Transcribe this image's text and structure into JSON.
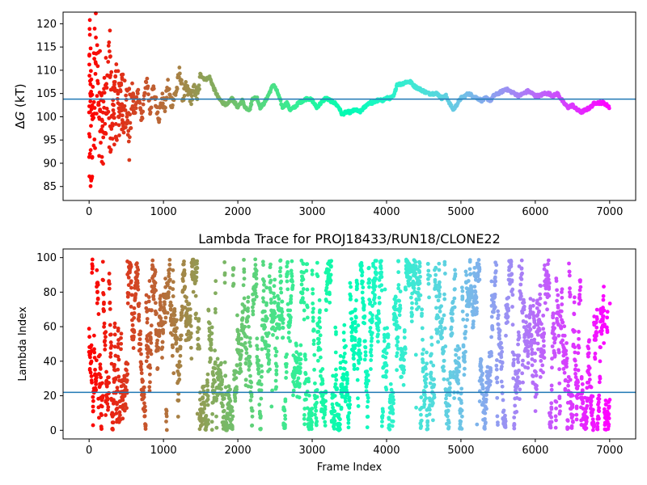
{
  "chart_data": [
    {
      "type": "scatter",
      "title": "",
      "ylabel_italic": "G",
      "ylabel_prefix": "Δ",
      "ylabel_suffix": " (kT)",
      "xlabel": "",
      "xlim": [
        -350,
        7350
      ],
      "ylim": [
        82,
        122.5
      ],
      "xticks": [
        0,
        1000,
        2000,
        3000,
        4000,
        5000,
        6000,
        7000
      ],
      "yticks": [
        85,
        90,
        95,
        100,
        105,
        110,
        115,
        120
      ],
      "hline": 103.8,
      "hline_color": "#1f77b4",
      "colormap": "rainbow",
      "x_range": [
        0,
        7000
      ],
      "trace_points": [
        [
          0,
          100
        ],
        [
          10,
          120
        ],
        [
          20,
          84
        ],
        [
          30,
          110
        ],
        [
          40,
          90
        ],
        [
          50,
          105
        ],
        [
          60,
          98
        ],
        [
          70,
          112
        ],
        [
          80,
          95
        ],
        [
          90,
          120
        ],
        [
          100,
          103
        ],
        [
          120,
          108
        ],
        [
          140,
          97
        ],
        [
          160,
          104
        ],
        [
          180,
          100
        ],
        [
          200,
          106
        ],
        [
          220,
          95
        ],
        [
          250,
          110
        ],
        [
          280,
          118
        ],
        [
          300,
          98
        ],
        [
          330,
          103
        ],
        [
          360,
          112
        ],
        [
          400,
          100
        ],
        [
          430,
          106
        ],
        [
          460,
          97
        ],
        [
          500,
          103
        ],
        [
          540,
          92
        ],
        [
          580,
          105
        ],
        [
          620,
          101
        ],
        [
          660,
          106
        ],
        [
          700,
          99
        ],
        [
          740,
          104
        ],
        [
          780,
          108
        ],
        [
          820,
          101
        ],
        [
          860,
          106
        ],
        [
          900,
          103
        ],
        [
          940,
          100
        ],
        [
          980,
          104
        ],
        [
          1020,
          102
        ],
        [
          1060,
          107
        ],
        [
          1100,
          103
        ],
        [
          1140,
          104
        ],
        [
          1180,
          106
        ],
        [
          1220,
          110
        ],
        [
          1260,
          104
        ],
        [
          1300,
          106
        ],
        [
          1340,
          105
        ],
        [
          1380,
          104
        ],
        [
          1420,
          106
        ],
        [
          1460,
          104
        ],
        [
          1500,
          109
        ],
        [
          1560,
          108
        ],
        [
          1620,
          108.5
        ],
        [
          1680,
          106
        ],
        [
          1740,
          104
        ],
        [
          1800,
          103
        ],
        [
          1860,
          102.5
        ],
        [
          1920,
          104
        ],
        [
          2000,
          102
        ],
        [
          2060,
          103.5
        ],
        [
          2100,
          102
        ],
        [
          2160,
          101.5
        ],
        [
          2200,
          104
        ],
        [
          2260,
          104
        ],
        [
          2300,
          102
        ],
        [
          2360,
          103
        ],
        [
          2420,
          105
        ],
        [
          2480,
          107
        ],
        [
          2540,
          105
        ],
        [
          2600,
          102
        ],
        [
          2660,
          103
        ],
        [
          2700,
          101.5
        ],
        [
          2760,
          102
        ],
        [
          2820,
          103
        ],
        [
          2880,
          103.5
        ],
        [
          2940,
          104
        ],
        [
          3000,
          103.5
        ],
        [
          3060,
          102
        ],
        [
          3120,
          103
        ],
        [
          3180,
          104
        ],
        [
          3240,
          103.5
        ],
        [
          3300,
          103
        ],
        [
          3360,
          102
        ],
        [
          3400,
          100.5
        ],
        [
          3460,
          101
        ],
        [
          3520,
          101
        ],
        [
          3580,
          101.5
        ],
        [
          3640,
          101
        ],
        [
          3700,
          102
        ],
        [
          3760,
          103
        ],
        [
          3820,
          103
        ],
        [
          3880,
          103.5
        ],
        [
          3940,
          103.5
        ],
        [
          4000,
          104
        ],
        [
          4060,
          104
        ],
        [
          4100,
          104.5
        ],
        [
          4140,
          107
        ],
        [
          4200,
          107
        ],
        [
          4260,
          107.5
        ],
        [
          4320,
          107.5
        ],
        [
          4380,
          106.5
        ],
        [
          4440,
          106
        ],
        [
          4500,
          105.5
        ],
        [
          4560,
          105
        ],
        [
          4620,
          105
        ],
        [
          4680,
          105
        ],
        [
          4740,
          104
        ],
        [
          4800,
          104.5
        ],
        [
          4860,
          102.5
        ],
        [
          4900,
          101.5
        ],
        [
          4960,
          103
        ],
        [
          5000,
          104
        ],
        [
          5060,
          104.5
        ],
        [
          5100,
          105
        ],
        [
          5160,
          104.5
        ],
        [
          5220,
          104
        ],
        [
          5280,
          103.5
        ],
        [
          5340,
          104
        ],
        [
          5400,
          103.5
        ],
        [
          5440,
          104.5
        ],
        [
          5500,
          105
        ],
        [
          5560,
          105.5
        ],
        [
          5600,
          106
        ],
        [
          5660,
          105.5
        ],
        [
          5720,
          105
        ],
        [
          5780,
          104.5
        ],
        [
          5840,
          105
        ],
        [
          5900,
          105.5
        ],
        [
          5960,
          105
        ],
        [
          6000,
          104.5
        ],
        [
          6060,
          104.5
        ],
        [
          6120,
          105
        ],
        [
          6180,
          105
        ],
        [
          6240,
          104.5
        ],
        [
          6300,
          105
        ],
        [
          6340,
          104
        ],
        [
          6380,
          103
        ],
        [
          6440,
          102
        ],
        [
          6500,
          102.5
        ],
        [
          6560,
          101.5
        ],
        [
          6620,
          101
        ],
        [
          6680,
          101.5
        ],
        [
          6740,
          102
        ],
        [
          6800,
          103
        ],
        [
          6860,
          103
        ],
        [
          6920,
          103
        ],
        [
          6960,
          102.5
        ],
        [
          7000,
          102
        ]
      ]
    },
    {
      "type": "scatter",
      "title": "Lambda Trace for PROJ18433/RUN18/CLONE22",
      "xlabel": "Frame Index",
      "ylabel": "Lambda Index",
      "xlim": [
        -350,
        7350
      ],
      "ylim": [
        -5,
        105
      ],
      "xticks": [
        0,
        1000,
        2000,
        3000,
        4000,
        5000,
        6000,
        7000
      ],
      "yticks": [
        0,
        20,
        40,
        60,
        80,
        100
      ],
      "hline": 22,
      "hline_color": "#1f77b4",
      "colormap": "rainbow",
      "x_range": [
        0,
        7000
      ],
      "value_range": [
        0,
        99
      ],
      "n_points": 3500
    }
  ]
}
